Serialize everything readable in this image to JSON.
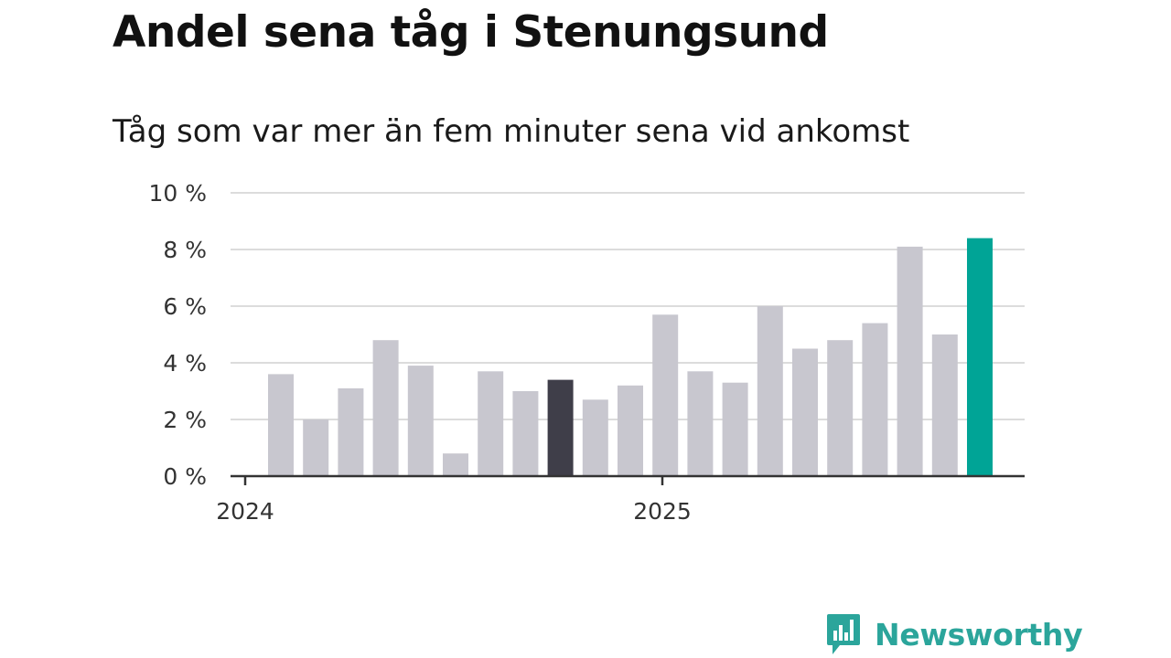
{
  "chart_data": {
    "type": "bar",
    "title": "Andel sena tåg i Stenungsund",
    "subtitle": "Tåg som var mer än fem minuter sena vid ankomst",
    "y_ticks": [
      "0 %",
      "2 %",
      "4 %",
      "6 %",
      "8 %",
      "10 %"
    ],
    "ylim": [
      0,
      10
    ],
    "x_ticks": [
      "2024",
      "2025"
    ],
    "values": [
      3.6,
      2.0,
      3.1,
      4.8,
      3.9,
      0.8,
      3.7,
      3.0,
      3.4,
      2.7,
      3.2,
      5.7,
      3.7,
      3.3,
      6.0,
      4.5,
      4.8,
      5.4,
      8.1,
      5.0,
      8.4
    ],
    "highlight_dark_index": 8,
    "highlight_latest_index": 20,
    "grid": true,
    "colors": {
      "bar_default": "#c8c7cf",
      "bar_dark": "#3f3e49",
      "bar_latest": "#00a496",
      "grid": "#dcdcdc",
      "axis": "#333333"
    }
  },
  "brand": {
    "name": "Newsworthy",
    "icon": "newsworthy-logo-icon",
    "color": "#2ba59b"
  }
}
